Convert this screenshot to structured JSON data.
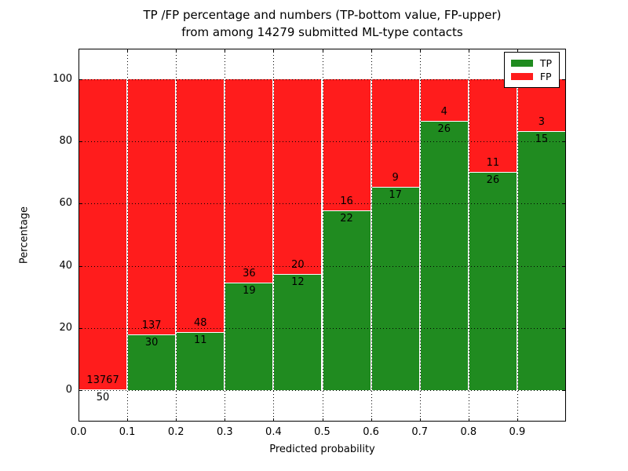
{
  "title": {
    "line1": "TP /FP percentage and numbers (TP-bottom value, FP-upper)",
    "line2": "from among 14279 submitted ML-type contacts"
  },
  "x_axis": {
    "label": "Predicted probability",
    "ticks": [
      "0.0",
      "0.1",
      "0.2",
      "0.3",
      "0.4",
      "0.5",
      "0.6",
      "0.7",
      "0.8",
      "0.9"
    ]
  },
  "y_axis": {
    "label": "Percentage",
    "ticks": [
      "0",
      "20",
      "40",
      "60",
      "80",
      "100"
    ]
  },
  "legend": {
    "items": [
      {
        "label": "TP",
        "color": "#208b20"
      },
      {
        "label": "FP",
        "color": "#ff1c1c"
      }
    ]
  },
  "chart_data": {
    "type": "bar",
    "stacked": true,
    "normalized_to_percent": true,
    "title": "TP /FP percentage and numbers (TP-bottom value, FP-upper) from among 14279 submitted ML-type contacts",
    "xlabel": "Predicted probability",
    "ylabel": "Percentage",
    "categories": [
      "0.0-0.1",
      "0.1-0.2",
      "0.2-0.3",
      "0.3-0.4",
      "0.4-0.5",
      "0.5-0.6",
      "0.6-0.7",
      "0.7-0.8",
      "0.8-0.9",
      "0.9-1.0"
    ],
    "series": [
      {
        "name": "TP",
        "color": "#208b20",
        "counts": [
          50,
          30,
          11,
          19,
          12,
          22,
          17,
          26,
          26,
          15
        ]
      },
      {
        "name": "FP",
        "color": "#ff1c1c",
        "counts": [
          13767,
          137,
          48,
          36,
          20,
          16,
          9,
          4,
          11,
          3
        ]
      }
    ],
    "total_contacts": 14279,
    "xlim": [
      0.0,
      1.0
    ],
    "ylim": [
      -10,
      110
    ],
    "grid": "dotted black, both axes",
    "legend_position": "upper right",
    "label_rule": "TP count printed below segment boundary, FP count printed above it"
  }
}
